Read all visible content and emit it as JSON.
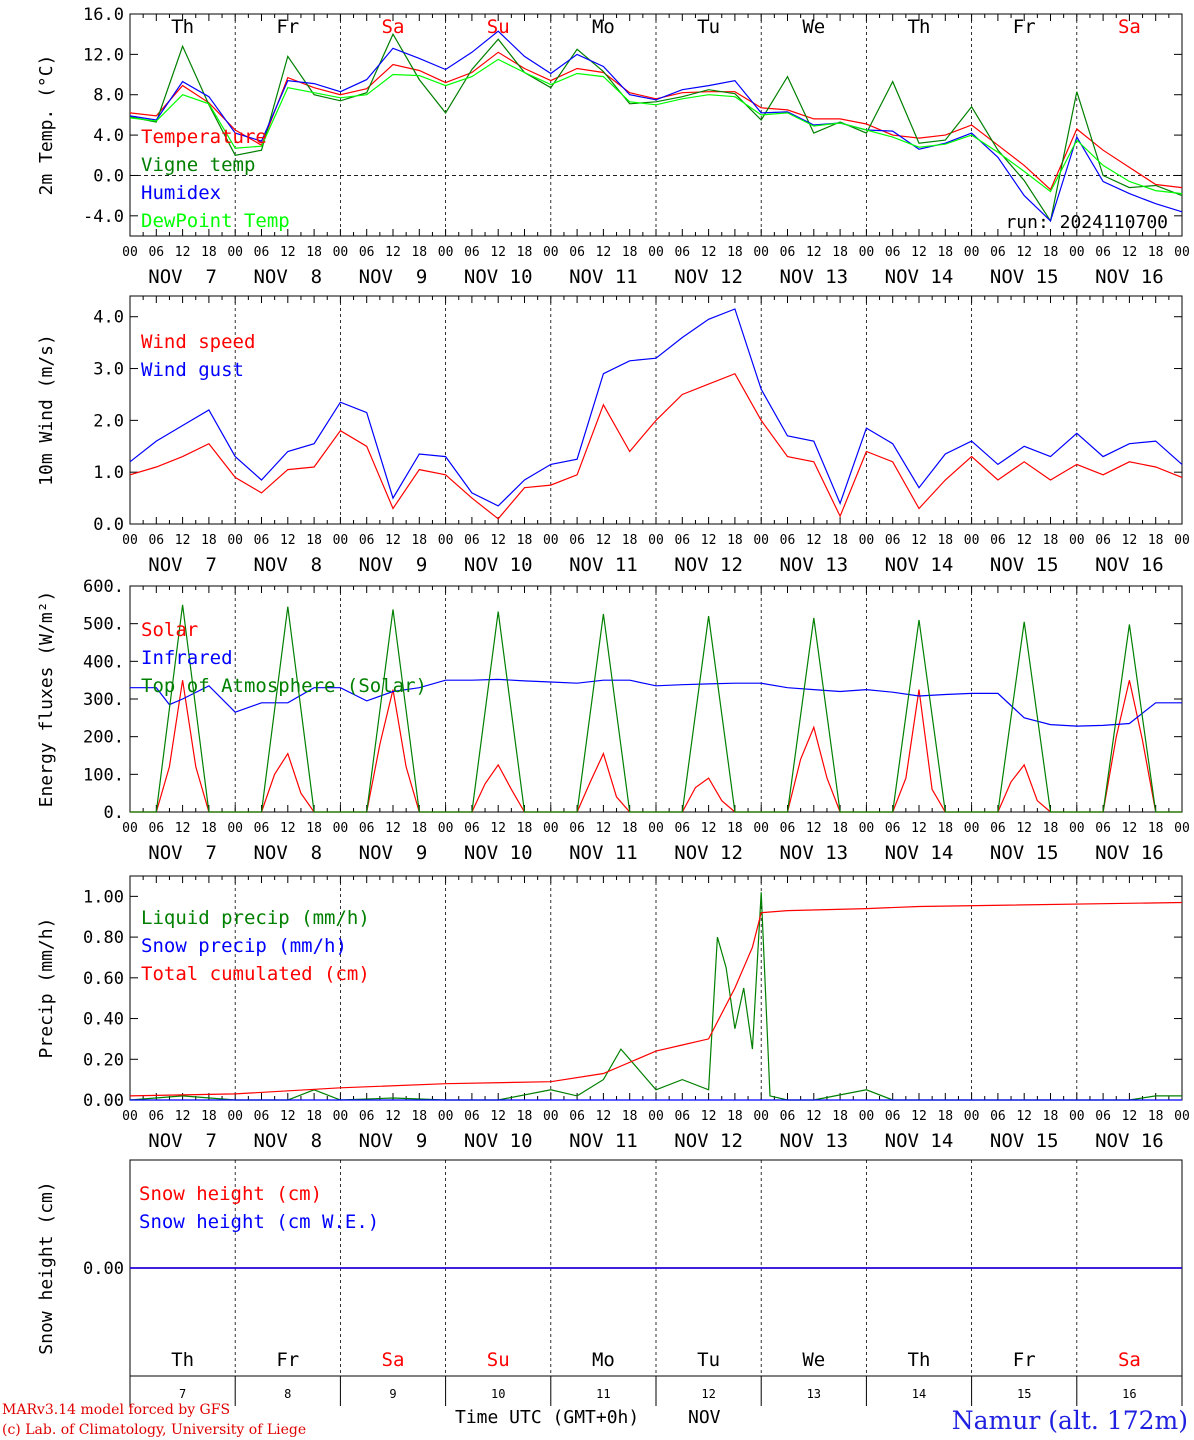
{
  "chart_data": [
    {
      "type": "line",
      "panel": "temperature",
      "ylabel": "2m Temp. (°C)",
      "ylim": [
        -6,
        16
      ],
      "yticks": [
        16.0,
        12.0,
        8.0,
        4.0,
        0.0,
        -4.0
      ],
      "ytick_labels": [
        "16.0",
        "12.0",
        "8.0",
        "4.0",
        "0.0",
        "-4.0"
      ],
      "x_unit": "hours since NOV 7 00 UTC",
      "run_label": "run: 2024110700",
      "series": [
        {
          "name": "Temperature",
          "color": "#ff0000",
          "x": [
            0,
            6,
            12,
            18,
            24,
            30,
            36,
            42,
            48,
            54,
            60,
            66,
            72,
            78,
            84,
            90,
            96,
            102,
            108,
            114,
            120,
            126,
            132,
            138,
            144,
            150,
            156,
            162,
            168,
            174,
            180,
            186,
            192,
            198,
            204,
            210,
            216,
            222,
            228,
            234,
            240
          ],
          "y": [
            6.2,
            5.9,
            8.9,
            7.2,
            4.5,
            3.0,
            9.7,
            8.7,
            8.0,
            8.6,
            11.0,
            10.4,
            9.2,
            10.2,
            12.2,
            10.6,
            9.4,
            10.6,
            10.2,
            8.2,
            7.6,
            8.2,
            8.3,
            8.3,
            6.7,
            6.5,
            5.6,
            5.6,
            5.1,
            4.0,
            3.7,
            4.0,
            5.0,
            3.0,
            1.0,
            -1.4,
            4.6,
            2.5,
            0.8,
            -0.9,
            -1.2
          ]
        },
        {
          "name": "Vigne temp",
          "color": "#008000",
          "x": [
            0,
            6,
            12,
            18,
            24,
            30,
            36,
            42,
            48,
            54,
            60,
            66,
            72,
            78,
            84,
            90,
            96,
            102,
            108,
            114,
            120,
            126,
            132,
            138,
            144,
            150,
            156,
            162,
            168,
            174,
            180,
            186,
            192,
            198,
            204,
            210,
            216,
            222,
            228,
            234,
            240
          ],
          "y": [
            5.8,
            5.3,
            12.8,
            7.0,
            2.0,
            2.5,
            11.8,
            8.0,
            7.4,
            8.2,
            14.0,
            9.5,
            6.2,
            10.5,
            13.5,
            10.2,
            8.7,
            12.5,
            10.3,
            7.1,
            7.3,
            7.8,
            8.5,
            8.1,
            5.5,
            9.8,
            4.2,
            5.3,
            4.2,
            9.3,
            3.2,
            3.5,
            6.8,
            2.5,
            -0.5,
            -4.5,
            8.3,
            0.0,
            -1.2,
            -1.0,
            -2.0
          ]
        },
        {
          "name": "Humidex",
          "color": "#0000ff",
          "x": [
            0,
            6,
            12,
            18,
            24,
            30,
            36,
            42,
            48,
            54,
            60,
            66,
            72,
            78,
            84,
            90,
            96,
            102,
            108,
            114,
            120,
            126,
            132,
            138,
            144,
            150,
            156,
            162,
            168,
            174,
            180,
            186,
            192,
            198,
            204,
            210,
            216,
            222,
            228,
            234,
            240
          ],
          "y": [
            5.9,
            5.5,
            9.3,
            7.8,
            4.2,
            3.4,
            9.4,
            9.1,
            8.3,
            9.5,
            12.6,
            11.6,
            10.5,
            12.2,
            14.3,
            11.8,
            10.1,
            12.0,
            10.8,
            8.0,
            7.5,
            8.5,
            8.9,
            9.4,
            6.2,
            6.3,
            5.0,
            5.2,
            4.5,
            4.4,
            2.6,
            3.2,
            4.2,
            1.8,
            -2.0,
            -4.5,
            3.8,
            -0.6,
            -1.8,
            -2.8,
            -3.6
          ]
        },
        {
          "name": "DewPoint Temp",
          "color": "#00ff00",
          "x": [
            0,
            6,
            12,
            18,
            24,
            30,
            36,
            42,
            48,
            54,
            60,
            66,
            72,
            78,
            84,
            90,
            96,
            102,
            108,
            114,
            120,
            126,
            132,
            138,
            144,
            150,
            156,
            162,
            168,
            174,
            180,
            186,
            192,
            198,
            204,
            210,
            216,
            222,
            228,
            234,
            240
          ],
          "y": [
            5.7,
            5.4,
            8.0,
            7.1,
            2.7,
            2.9,
            8.7,
            8.2,
            7.7,
            8.0,
            10.0,
            9.9,
            8.9,
            9.8,
            11.5,
            10.2,
            9.0,
            10.1,
            9.8,
            7.3,
            7.0,
            7.6,
            8.0,
            7.8,
            6.0,
            6.2,
            4.9,
            5.2,
            4.5,
            3.8,
            2.8,
            3.1,
            4.0,
            2.3,
            0.4,
            -1.6,
            3.5,
            1.0,
            -0.6,
            -1.5,
            -1.8
          ]
        }
      ]
    },
    {
      "type": "line",
      "panel": "wind",
      "ylabel": "10m Wind (m/s)",
      "ylim": [
        0,
        4.4
      ],
      "yticks": [
        4.0,
        3.0,
        2.0,
        1.0,
        0.0
      ],
      "ytick_labels": [
        "4.0",
        "3.0",
        "2.0",
        "1.0",
        "0.0"
      ],
      "series": [
        {
          "name": "Wind speed",
          "color": "#ff0000",
          "x": [
            0,
            6,
            12,
            18,
            24,
            30,
            36,
            42,
            48,
            54,
            60,
            66,
            72,
            78,
            84,
            90,
            96,
            102,
            108,
            114,
            120,
            126,
            132,
            138,
            144,
            150,
            156,
            162,
            168,
            174,
            180,
            186,
            192,
            198,
            204,
            210,
            216,
            222,
            228,
            234,
            240
          ],
          "y": [
            0.95,
            1.1,
            1.3,
            1.55,
            0.9,
            0.6,
            1.05,
            1.1,
            1.8,
            1.5,
            0.3,
            1.05,
            0.95,
            0.5,
            0.1,
            0.7,
            0.75,
            0.95,
            2.3,
            1.4,
            2.0,
            2.5,
            2.7,
            2.9,
            2.0,
            1.3,
            1.2,
            0.15,
            1.4,
            1.2,
            0.3,
            0.85,
            1.3,
            0.85,
            1.2,
            0.85,
            1.15,
            0.95,
            1.2,
            1.1,
            0.9
          ]
        },
        {
          "name": "Wind gust",
          "color": "#0000ff",
          "x": [
            0,
            6,
            12,
            18,
            24,
            30,
            36,
            42,
            48,
            54,
            60,
            66,
            72,
            78,
            84,
            90,
            96,
            102,
            108,
            114,
            120,
            126,
            132,
            138,
            144,
            150,
            156,
            162,
            168,
            174,
            180,
            186,
            192,
            198,
            204,
            210,
            216,
            222,
            228,
            234,
            240
          ],
          "y": [
            1.2,
            1.6,
            1.9,
            2.2,
            1.3,
            0.85,
            1.4,
            1.55,
            2.35,
            2.15,
            0.5,
            1.35,
            1.3,
            0.6,
            0.35,
            0.85,
            1.15,
            1.25,
            2.9,
            3.15,
            3.2,
            3.6,
            3.95,
            4.15,
            2.6,
            1.7,
            1.6,
            0.4,
            1.85,
            1.55,
            0.7,
            1.35,
            1.6,
            1.15,
            1.5,
            1.3,
            1.75,
            1.3,
            1.55,
            1.6,
            1.15
          ]
        }
      ]
    },
    {
      "type": "line",
      "panel": "energy",
      "ylabel": "Energy fluxes (W/m²)",
      "ylim": [
        0,
        600
      ],
      "yticks": [
        600,
        500,
        400,
        300,
        200,
        100,
        0
      ],
      "ytick_labels": [
        "600.",
        "500.",
        "400.",
        "300.",
        "200.",
        "100.",
        "0."
      ],
      "series": [
        {
          "name": "Solar",
          "color": "#ff0000",
          "x": [
            0,
            6,
            9,
            12,
            15,
            18,
            24,
            30,
            33,
            36,
            39,
            42,
            48,
            54,
            57,
            60,
            63,
            66,
            72,
            78,
            81,
            84,
            87,
            90,
            96,
            102,
            105,
            108,
            111,
            114,
            120,
            126,
            129,
            132,
            135,
            138,
            144,
            150,
            153,
            156,
            159,
            162,
            168,
            174,
            177,
            180,
            183,
            186,
            192,
            198,
            201,
            204,
            207,
            210,
            216,
            222,
            225,
            228,
            231,
            234,
            240
          ],
          "y": [
            0,
            0,
            120,
            350,
            120,
            0,
            0,
            0,
            100,
            155,
            50,
            0,
            0,
            0,
            180,
            325,
            120,
            0,
            0,
            0,
            75,
            125,
            60,
            0,
            0,
            0,
            80,
            155,
            40,
            0,
            0,
            0,
            65,
            90,
            30,
            0,
            0,
            0,
            140,
            225,
            90,
            0,
            0,
            0,
            90,
            325,
            60,
            0,
            0,
            0,
            80,
            125,
            30,
            0,
            0,
            0,
            200,
            350,
            190,
            0,
            0
          ]
        },
        {
          "name": "Infrared",
          "color": "#0000ff",
          "x": [
            0,
            6,
            9,
            12,
            18,
            24,
            30,
            36,
            42,
            48,
            54,
            60,
            66,
            72,
            78,
            84,
            90,
            96,
            102,
            108,
            114,
            120,
            126,
            132,
            138,
            144,
            150,
            156,
            162,
            168,
            174,
            180,
            186,
            192,
            198,
            204,
            210,
            216,
            222,
            228,
            234,
            240
          ],
          "y": [
            330,
            330,
            285,
            300,
            335,
            265,
            290,
            290,
            330,
            330,
            295,
            320,
            330,
            350,
            350,
            352,
            348,
            345,
            342,
            350,
            350,
            335,
            338,
            340,
            342,
            342,
            330,
            325,
            320,
            325,
            318,
            308,
            312,
            315,
            315,
            250,
            232,
            228,
            230,
            235,
            290,
            290
          ]
        },
        {
          "name": "Top of Atmosphere (Solar)",
          "color": "#008000",
          "x": [
            0,
            6,
            12,
            18,
            24,
            30,
            36,
            42,
            48,
            54,
            60,
            66,
            72,
            78,
            84,
            90,
            96,
            102,
            108,
            114,
            120,
            126,
            132,
            138,
            144,
            150,
            156,
            162,
            168,
            174,
            180,
            186,
            192,
            198,
            204,
            210,
            216,
            222,
            228,
            234,
            240
          ],
          "y": [
            0,
            0,
            550,
            0,
            0,
            0,
            545,
            0,
            0,
            0,
            538,
            0,
            0,
            0,
            532,
            0,
            0,
            0,
            526,
            0,
            0,
            0,
            520,
            0,
            0,
            0,
            515,
            0,
            0,
            0,
            510,
            0,
            0,
            0,
            505,
            0,
            0,
            0,
            498,
            0,
            0
          ]
        }
      ]
    },
    {
      "type": "line",
      "panel": "precip",
      "ylabel": "Precip (mm/h)",
      "ylim": [
        0,
        1.1
      ],
      "yticks": [
        1.0,
        0.8,
        0.6,
        0.4,
        0.2,
        0.0
      ],
      "ytick_labels": [
        "1.00",
        "0.80",
        "0.60",
        "0.40",
        "0.20",
        "0.00"
      ],
      "series": [
        {
          "name": "Liquid precip (mm/h)",
          "color": "#008000",
          "x": [
            0,
            12,
            24,
            36,
            42,
            48,
            60,
            72,
            84,
            96,
            102,
            108,
            112,
            116,
            120,
            126,
            132,
            134,
            136,
            138,
            140,
            142,
            144,
            146,
            150,
            156,
            168,
            174,
            180,
            192,
            204,
            216,
            228,
            234,
            240
          ],
          "y": [
            0,
            0.02,
            0,
            0,
            0.05,
            0,
            0.01,
            0,
            0,
            0.05,
            0.02,
            0.1,
            0.25,
            0.15,
            0.05,
            0.1,
            0.05,
            0.8,
            0.65,
            0.35,
            0.55,
            0.25,
            1.02,
            0.02,
            0,
            0,
            0.05,
            0,
            0,
            0,
            0,
            0,
            0,
            0.02,
            0.02
          ]
        },
        {
          "name": "Snow precip (mm/h)",
          "color": "#0000ff",
          "x": [
            0,
            240
          ],
          "y": [
            0,
            0
          ]
        },
        {
          "name": "Total cumulated (cm)",
          "color": "#ff0000",
          "x": [
            0,
            24,
            48,
            72,
            96,
            108,
            120,
            126,
            132,
            138,
            142,
            144,
            150,
            168,
            180,
            240
          ],
          "y": [
            0.02,
            0.03,
            0.06,
            0.08,
            0.09,
            0.13,
            0.24,
            0.27,
            0.3,
            0.55,
            0.75,
            0.92,
            0.93,
            0.94,
            0.95,
            0.97
          ]
        }
      ]
    },
    {
      "type": "line",
      "panel": "snow",
      "ylabel": "Snow height (cm)",
      "yticks": [
        0.0
      ],
      "ytick_labels": [
        "0.00"
      ],
      "series": [
        {
          "name": "Snow height (cm)",
          "color": "#ff0000",
          "x": [
            0,
            240
          ],
          "y": [
            0,
            0
          ]
        },
        {
          "name": "Snow height (cm W.E.)",
          "color": "#0000ff",
          "x": [
            0,
            240
          ],
          "y": [
            0,
            0
          ]
        }
      ]
    }
  ],
  "axes": {
    "hour_labels": [
      "00",
      "06",
      "12",
      "18"
    ],
    "end_hour_label": "00",
    "dates": [
      "NOV  7",
      "NOV  8",
      "NOV  9",
      "NOV 10",
      "NOV 11",
      "NOV 12",
      "NOV 13",
      "NOV 14",
      "NOV 15",
      "NOV 16"
    ],
    "weekdays": [
      "Th",
      "Fr",
      "Sa",
      "Su",
      "Mo",
      "Tu",
      "We",
      "Th",
      "Fr",
      "Sa"
    ],
    "weekend_flags": [
      false,
      false,
      true,
      true,
      false,
      false,
      false,
      false,
      false,
      true
    ],
    "day_numbers": [
      "7",
      "8",
      "9",
      "10",
      "11",
      "12",
      "13",
      "14",
      "15",
      "16"
    ],
    "month_label": "NOV",
    "xlabel": "Time UTC (GMT+0h)"
  },
  "footer": {
    "model": "MARv3.14 model forced by GFS",
    "credit": "(c) Lab. of Climatology, University of Liege",
    "station": "Namur (alt. 172m)"
  },
  "colors": {
    "weekday": "#000000",
    "weekend": "#ff0000",
    "footer_red": "#e00000",
    "station_blue": "#2020e0"
  }
}
